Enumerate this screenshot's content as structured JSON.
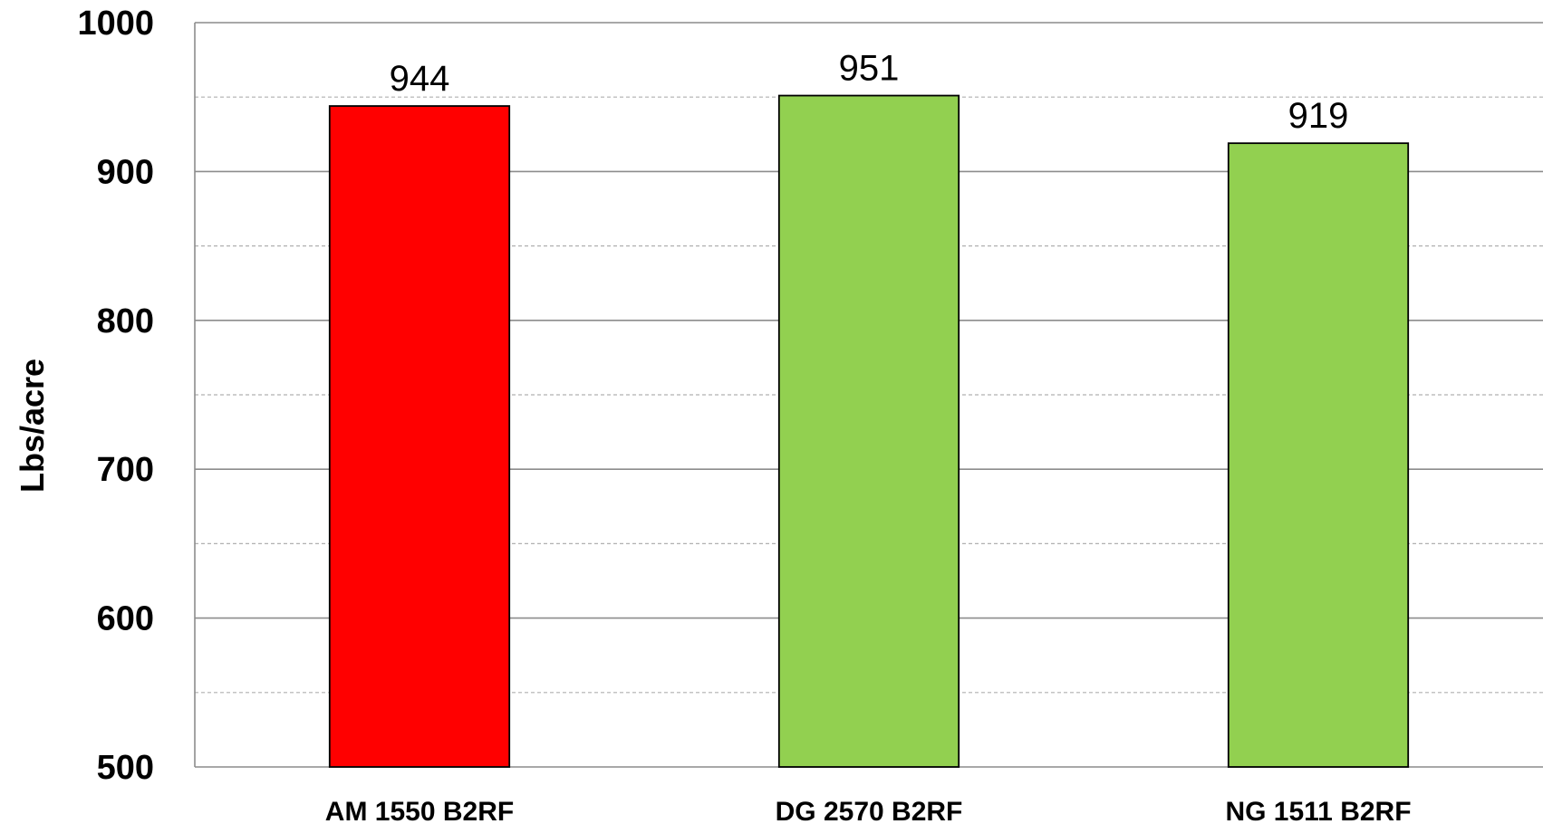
{
  "chart_data": {
    "type": "bar",
    "title": "",
    "xlabel": "",
    "ylabel": "Lbs/acre",
    "ylim": [
      500,
      1000
    ],
    "yticks": [
      500,
      600,
      700,
      800,
      900,
      1000
    ],
    "grid": {
      "major": true,
      "minor": true
    },
    "categories": [
      "AM 1550 B2RF",
      "DG 2570 B2RF",
      "NG 1511 B2RF"
    ],
    "values": [
      944,
      951,
      919
    ],
    "data_labels": [
      "944",
      "951",
      "919"
    ],
    "colors": [
      "#ff0000",
      "#92d050",
      "#92d050"
    ]
  }
}
